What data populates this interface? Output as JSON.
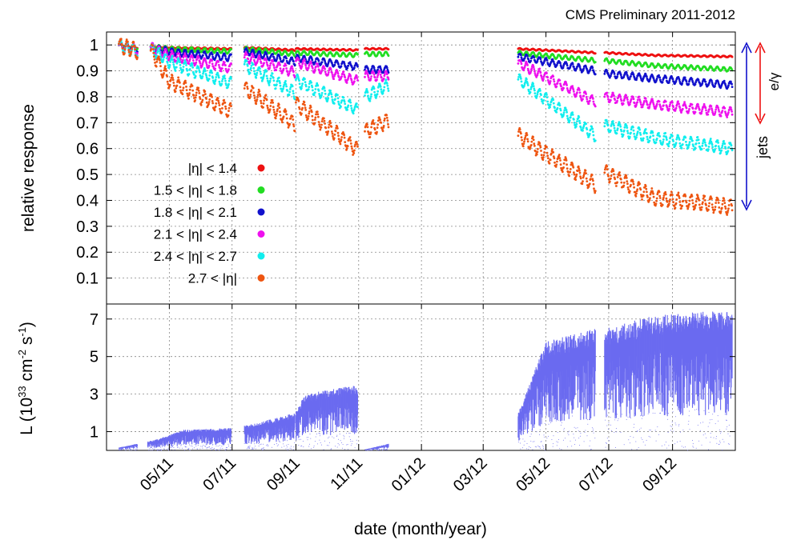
{
  "title": "CMS Preliminary 2011-2012",
  "colors": {
    "eta1": "#ee1111",
    "eta2": "#22dd22",
    "eta3": "#1111cc",
    "eta4": "#ee11ee",
    "eta5": "#11eeee",
    "eta6": "#ee5511",
    "lumi": "#6b6bf0",
    "jets_arrow": "#1111cc",
    "egamma_arrow": "#ee1111"
  },
  "side_labels": {
    "jets": "jets",
    "egamma": "e/γ"
  },
  "chart_data": [
    {
      "type": "scatter",
      "title": "CMS Preliminary 2011-2012",
      "xlabel": "date (month/year)",
      "ylabel": "relative response",
      "x_tick_labels": [
        "05/11",
        "07/11",
        "09/11",
        "11/11",
        "01/12",
        "03/12",
        "05/12",
        "07/12",
        "09/12"
      ],
      "y_ticks": [
        0.1,
        0.2,
        0.3,
        0.4,
        0.5,
        0.6,
        0.7,
        0.8,
        0.9,
        1
      ],
      "ylim": [
        0,
        1.05
      ],
      "xlim": [
        "2011-03",
        "2012-11"
      ],
      "grid": true,
      "legend_position": "bottom-left",
      "periods": [
        [
          "2011-03-13",
          "2011-03-31"
        ],
        [
          "2011-04-13",
          "2011-06-30"
        ],
        [
          "2011-07-13",
          "2011-08-31"
        ],
        [
          "2011-09-01",
          "2011-10-31"
        ],
        [
          "2011-11-07",
          "2011-11-30"
        ],
        [
          "2012-04-04",
          "2012-06-18"
        ],
        [
          "2012-06-27",
          "2012-10-29"
        ]
      ],
      "series": [
        {
          "name": "|η| < 1.4",
          "color_key": "eta1",
          "points": [
            [
              "2011-03-13",
              1.0
            ],
            [
              "2011-03-31",
              0.99
            ],
            [
              "2011-04-13",
              0.995
            ],
            [
              "2011-05-01",
              0.99
            ],
            [
              "2011-06-30",
              0.985
            ],
            [
              "2011-07-13",
              0.99
            ],
            [
              "2011-08-31",
              0.98
            ],
            [
              "2011-09-01",
              0.985
            ],
            [
              "2011-10-31",
              0.98
            ],
            [
              "2011-11-07",
              0.985
            ],
            [
              "2011-11-30",
              0.985
            ],
            [
              "2012-04-04",
              0.985
            ],
            [
              "2012-06-18",
              0.97
            ],
            [
              "2012-06-27",
              0.97
            ],
            [
              "2012-08-15",
              0.96
            ],
            [
              "2012-10-29",
              0.955
            ]
          ]
        },
        {
          "name": "1.5 < |η| < 1.8",
          "color_key": "eta2",
          "points": [
            [
              "2011-03-13",
              1.0
            ],
            [
              "2011-03-31",
              0.99
            ],
            [
              "2011-04-13",
              0.995
            ],
            [
              "2011-05-01",
              0.985
            ],
            [
              "2011-06-30",
              0.975
            ],
            [
              "2011-07-13",
              0.985
            ],
            [
              "2011-08-31",
              0.965
            ],
            [
              "2011-09-01",
              0.97
            ],
            [
              "2011-10-31",
              0.96
            ],
            [
              "2011-11-07",
              0.965
            ],
            [
              "2011-11-30",
              0.965
            ],
            [
              "2012-04-04",
              0.97
            ],
            [
              "2012-06-18",
              0.94
            ],
            [
              "2012-06-27",
              0.94
            ],
            [
              "2012-08-15",
              0.92
            ],
            [
              "2012-10-29",
              0.905
            ]
          ]
        },
        {
          "name": "1.8 < |η| < 2.1",
          "color_key": "eta3",
          "points": [
            [
              "2011-03-13",
              1.0
            ],
            [
              "2011-03-31",
              0.985
            ],
            [
              "2011-04-13",
              0.99
            ],
            [
              "2011-05-01",
              0.975
            ],
            [
              "2011-06-30",
              0.95
            ],
            [
              "2011-07-13",
              0.975
            ],
            [
              "2011-08-31",
              0.935
            ],
            [
              "2011-09-01",
              0.95
            ],
            [
              "2011-10-31",
              0.915
            ],
            [
              "2011-11-07",
              0.905
            ],
            [
              "2011-11-30",
              0.905
            ],
            [
              "2012-04-04",
              0.955
            ],
            [
              "2012-06-18",
              0.9
            ],
            [
              "2012-06-27",
              0.89
            ],
            [
              "2012-08-15",
              0.87
            ],
            [
              "2012-10-29",
              0.845
            ]
          ]
        },
        {
          "name": "2.1 < |η| < 2.4",
          "color_key": "eta4",
          "points": [
            [
              "2011-03-13",
              1.0
            ],
            [
              "2011-03-31",
              0.98
            ],
            [
              "2011-04-13",
              0.99
            ],
            [
              "2011-05-01",
              0.96
            ],
            [
              "2011-06-30",
              0.91
            ],
            [
              "2011-07-13",
              0.955
            ],
            [
              "2011-08-31",
              0.895
            ],
            [
              "2011-09-01",
              0.935
            ],
            [
              "2011-10-31",
              0.86
            ],
            [
              "2011-11-07",
              0.88
            ],
            [
              "2011-11-30",
              0.88
            ],
            [
              "2012-04-04",
              0.93
            ],
            [
              "2012-06-18",
              0.78
            ],
            [
              "2012-06-27",
              0.8
            ],
            [
              "2012-08-15",
              0.77
            ],
            [
              "2012-10-29",
              0.74
            ]
          ]
        },
        {
          "name": "2.4 < |η| < 2.7",
          "color_key": "eta5",
          "points": [
            [
              "2011-03-13",
              1.0
            ],
            [
              "2011-03-31",
              0.975
            ],
            [
              "2011-04-13",
              0.985
            ],
            [
              "2011-05-01",
              0.935
            ],
            [
              "2011-06-30",
              0.85
            ],
            [
              "2011-07-13",
              0.925
            ],
            [
              "2011-08-31",
              0.815
            ],
            [
              "2011-09-01",
              0.865
            ],
            [
              "2011-10-31",
              0.75
            ],
            [
              "2011-11-07",
              0.8
            ],
            [
              "2011-11-30",
              0.845
            ],
            [
              "2012-04-04",
              0.87
            ],
            [
              "2012-06-18",
              0.65
            ],
            [
              "2012-06-27",
              0.69
            ],
            [
              "2012-08-15",
              0.64
            ],
            [
              "2012-10-29",
              0.6
            ]
          ]
        },
        {
          "name": "2.7 < |η|",
          "color_key": "eta6",
          "points": [
            [
              "2011-03-13",
              1.0
            ],
            [
              "2011-03-31",
              0.975
            ],
            [
              "2011-04-13",
              0.98
            ],
            [
              "2011-05-01",
              0.86
            ],
            [
              "2011-06-30",
              0.745
            ],
            [
              "2011-07-13",
              0.835
            ],
            [
              "2011-08-31",
              0.695
            ],
            [
              "2011-09-01",
              0.775
            ],
            [
              "2011-10-31",
              0.595
            ],
            [
              "2011-11-07",
              0.665
            ],
            [
              "2011-11-30",
              0.71
            ],
            [
              "2012-04-04",
              0.65
            ],
            [
              "2012-06-18",
              0.46
            ],
            [
              "2012-06-27",
              0.51
            ],
            [
              "2012-08-15",
              0.41
            ],
            [
              "2012-10-29",
              0.375
            ]
          ]
        }
      ]
    },
    {
      "type": "bar",
      "xlabel": "date (month/year)",
      "ylabel": "L (10^33 cm^-2 s^-1)",
      "y_ticks": [
        1,
        3,
        5,
        7
      ],
      "ylim": [
        0,
        7.8
      ],
      "grid": true,
      "series": [
        {
          "name": "",
          "color_key": "lumi",
          "envelope": [
            [
              "2011-03-13",
              0.15
            ],
            [
              "2011-04-20",
              0.6
            ],
            [
              "2011-05-15",
              1.1
            ],
            [
              "2011-06-30",
              1.2
            ],
            [
              "2011-07-20",
              1.4
            ],
            [
              "2011-08-31",
              2.0
            ],
            [
              "2011-09-10",
              3.0
            ],
            [
              "2011-10-31",
              3.5
            ],
            [
              "2011-11-07",
              0.05
            ],
            [
              "2012-04-04",
              2.0
            ],
            [
              "2012-05-01",
              5.8
            ],
            [
              "2012-06-18",
              6.5
            ],
            [
              "2012-06-27",
              6.5
            ],
            [
              "2012-08-15",
              7.2
            ],
            [
              "2012-10-29",
              7.5
            ]
          ]
        }
      ]
    }
  ],
  "legend_sub": {
    "d": "2",
    "e": "-2",
    "f": "-1",
    "g": "33"
  }
}
